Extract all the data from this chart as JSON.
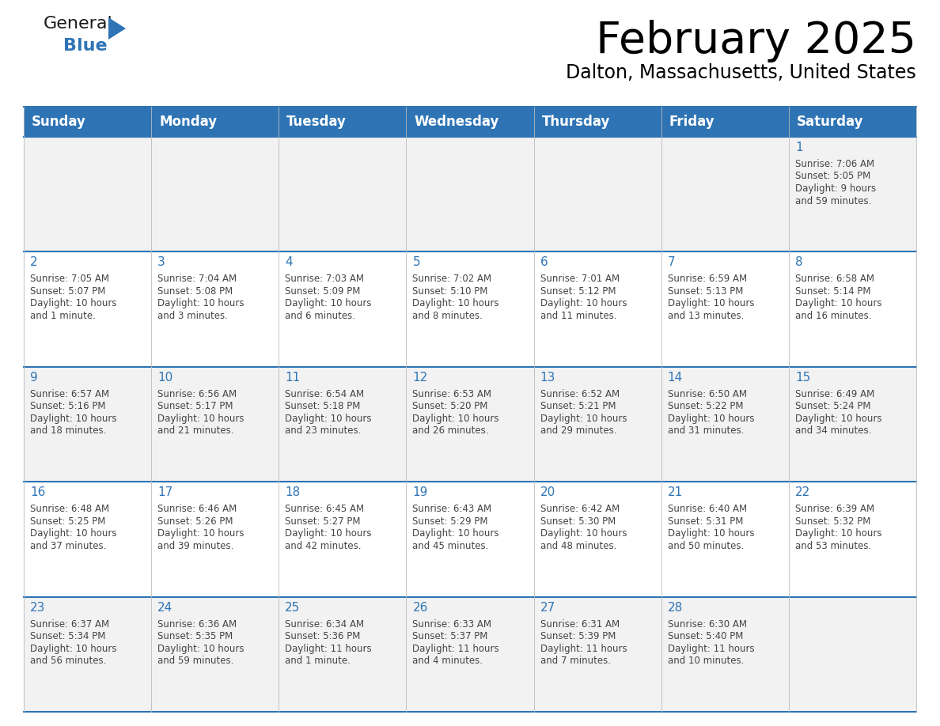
{
  "title": "February 2025",
  "subtitle": "Dalton, Massachusetts, United States",
  "header_bg": "#2E74B5",
  "header_text_color": "#FFFFFF",
  "cell_bg_odd": "#F2F2F2",
  "cell_bg_even": "#FFFFFF",
  "text_color": "#444444",
  "days_of_week": [
    "Sunday",
    "Monday",
    "Tuesday",
    "Wednesday",
    "Thursday",
    "Friday",
    "Saturday"
  ],
  "calendar_data": [
    [
      null,
      null,
      null,
      null,
      null,
      null,
      {
        "day": "1",
        "sunrise": "7:06 AM",
        "sunset": "5:05 PM",
        "daylight1": "Daylight: 9 hours",
        "daylight2": "and 59 minutes."
      }
    ],
    [
      {
        "day": "2",
        "sunrise": "7:05 AM",
        "sunset": "5:07 PM",
        "daylight1": "Daylight: 10 hours",
        "daylight2": "and 1 minute."
      },
      {
        "day": "3",
        "sunrise": "7:04 AM",
        "sunset": "5:08 PM",
        "daylight1": "Daylight: 10 hours",
        "daylight2": "and 3 minutes."
      },
      {
        "day": "4",
        "sunrise": "7:03 AM",
        "sunset": "5:09 PM",
        "daylight1": "Daylight: 10 hours",
        "daylight2": "and 6 minutes."
      },
      {
        "day": "5",
        "sunrise": "7:02 AM",
        "sunset": "5:10 PM",
        "daylight1": "Daylight: 10 hours",
        "daylight2": "and 8 minutes."
      },
      {
        "day": "6",
        "sunrise": "7:01 AM",
        "sunset": "5:12 PM",
        "daylight1": "Daylight: 10 hours",
        "daylight2": "and 11 minutes."
      },
      {
        "day": "7",
        "sunrise": "6:59 AM",
        "sunset": "5:13 PM",
        "daylight1": "Daylight: 10 hours",
        "daylight2": "and 13 minutes."
      },
      {
        "day": "8",
        "sunrise": "6:58 AM",
        "sunset": "5:14 PM",
        "daylight1": "Daylight: 10 hours",
        "daylight2": "and 16 minutes."
      }
    ],
    [
      {
        "day": "9",
        "sunrise": "6:57 AM",
        "sunset": "5:16 PM",
        "daylight1": "Daylight: 10 hours",
        "daylight2": "and 18 minutes."
      },
      {
        "day": "10",
        "sunrise": "6:56 AM",
        "sunset": "5:17 PM",
        "daylight1": "Daylight: 10 hours",
        "daylight2": "and 21 minutes."
      },
      {
        "day": "11",
        "sunrise": "6:54 AM",
        "sunset": "5:18 PM",
        "daylight1": "Daylight: 10 hours",
        "daylight2": "and 23 minutes."
      },
      {
        "day": "12",
        "sunrise": "6:53 AM",
        "sunset": "5:20 PM",
        "daylight1": "Daylight: 10 hours",
        "daylight2": "and 26 minutes."
      },
      {
        "day": "13",
        "sunrise": "6:52 AM",
        "sunset": "5:21 PM",
        "daylight1": "Daylight: 10 hours",
        "daylight2": "and 29 minutes."
      },
      {
        "day": "14",
        "sunrise": "6:50 AM",
        "sunset": "5:22 PM",
        "daylight1": "Daylight: 10 hours",
        "daylight2": "and 31 minutes."
      },
      {
        "day": "15",
        "sunrise": "6:49 AM",
        "sunset": "5:24 PM",
        "daylight1": "Daylight: 10 hours",
        "daylight2": "and 34 minutes."
      }
    ],
    [
      {
        "day": "16",
        "sunrise": "6:48 AM",
        "sunset": "5:25 PM",
        "daylight1": "Daylight: 10 hours",
        "daylight2": "and 37 minutes."
      },
      {
        "day": "17",
        "sunrise": "6:46 AM",
        "sunset": "5:26 PM",
        "daylight1": "Daylight: 10 hours",
        "daylight2": "and 39 minutes."
      },
      {
        "day": "18",
        "sunrise": "6:45 AM",
        "sunset": "5:27 PM",
        "daylight1": "Daylight: 10 hours",
        "daylight2": "and 42 minutes."
      },
      {
        "day": "19",
        "sunrise": "6:43 AM",
        "sunset": "5:29 PM",
        "daylight1": "Daylight: 10 hours",
        "daylight2": "and 45 minutes."
      },
      {
        "day": "20",
        "sunrise": "6:42 AM",
        "sunset": "5:30 PM",
        "daylight1": "Daylight: 10 hours",
        "daylight2": "and 48 minutes."
      },
      {
        "day": "21",
        "sunrise": "6:40 AM",
        "sunset": "5:31 PM",
        "daylight1": "Daylight: 10 hours",
        "daylight2": "and 50 minutes."
      },
      {
        "day": "22",
        "sunrise": "6:39 AM",
        "sunset": "5:32 PM",
        "daylight1": "Daylight: 10 hours",
        "daylight2": "and 53 minutes."
      }
    ],
    [
      {
        "day": "23",
        "sunrise": "6:37 AM",
        "sunset": "5:34 PM",
        "daylight1": "Daylight: 10 hours",
        "daylight2": "and 56 minutes."
      },
      {
        "day": "24",
        "sunrise": "6:36 AM",
        "sunset": "5:35 PM",
        "daylight1": "Daylight: 10 hours",
        "daylight2": "and 59 minutes."
      },
      {
        "day": "25",
        "sunrise": "6:34 AM",
        "sunset": "5:36 PM",
        "daylight1": "Daylight: 11 hours",
        "daylight2": "and 1 minute."
      },
      {
        "day": "26",
        "sunrise": "6:33 AM",
        "sunset": "5:37 PM",
        "daylight1": "Daylight: 11 hours",
        "daylight2": "and 4 minutes."
      },
      {
        "day": "27",
        "sunrise": "6:31 AM",
        "sunset": "5:39 PM",
        "daylight1": "Daylight: 11 hours",
        "daylight2": "and 7 minutes."
      },
      {
        "day": "28",
        "sunrise": "6:30 AM",
        "sunset": "5:40 PM",
        "daylight1": "Daylight: 11 hours",
        "daylight2": "and 10 minutes."
      },
      null
    ]
  ],
  "logo_color_general": "#1a1a1a",
  "logo_color_blue": "#2E74B5",
  "fig_width": 11.88,
  "fig_height": 9.18,
  "dpi": 100
}
